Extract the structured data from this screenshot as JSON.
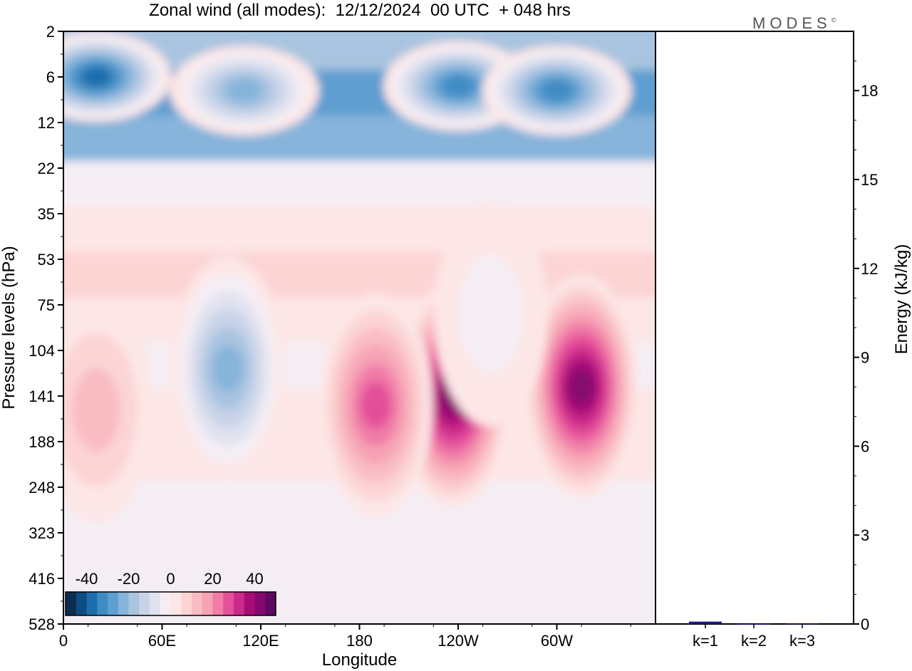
{
  "title": "Zonal wind (all modes):  12/12/2024  00 UTC  + 048 hrs",
  "logo": "MODES",
  "logo_mark": "©",
  "chart_data": [
    {
      "type": "heatmap",
      "title": "Zonal wind (all modes):  12/12/2024  00 UTC  + 048 hrs",
      "xlabel": "Longitude",
      "ylabel": "Pressure levels (hPa)",
      "x_ticks": [
        "0",
        "60E",
        "120E",
        "180",
        "120W",
        "60W"
      ],
      "y_ticks": [
        "2",
        "6",
        "12",
        "22",
        "35",
        "53",
        "75",
        "104",
        "141",
        "188",
        "248",
        "323",
        "416",
        "528"
      ],
      "colorbar": {
        "tick_labels": [
          "-40",
          "-20",
          "0",
          "20",
          "40"
        ],
        "levels": [
          -45,
          -40,
          -35,
          -30,
          -25,
          -20,
          -15,
          -10,
          -5,
          0,
          5,
          10,
          15,
          20,
          25,
          30,
          35,
          40,
          45
        ],
        "colors": [
          "#0b2d4e",
          "#0f4a80",
          "#1c6dab",
          "#3f8cc4",
          "#5f9ed0",
          "#86b4db",
          "#a9c4e0",
          "#c8d3e8",
          "#e0e2ef",
          "#f4eef4",
          "#fde6e6",
          "#fcd4d4",
          "#f9bcc3",
          "#f6a3b5",
          "#f07ca7",
          "#e4509a",
          "#cc2a8a",
          "#a80a78",
          "#850870",
          "#5e0860"
        ]
      },
      "features": [
        {
          "lon": 20,
          "level_index": 1.0,
          "value": -40
        },
        {
          "lon": 110,
          "level_index": 1.3,
          "value": -28
        },
        {
          "lon": 240,
          "level_index": 1.2,
          "value": -35
        },
        {
          "lon": 300,
          "level_index": 1.3,
          "value": -35
        },
        {
          "lon": 100,
          "level_index": 7.4,
          "value": -25
        },
        {
          "lon": 237,
          "level_index": 8.0,
          "value": 42
        },
        {
          "lon": 315,
          "level_index": 7.8,
          "value": 40
        },
        {
          "lon": 190,
          "level_index": 8.2,
          "value": 28
        },
        {
          "lon": 20,
          "level_index": 8.3,
          "value": 12
        },
        {
          "lon": 260,
          "level_index": 6.2,
          "value": -8
        }
      ]
    },
    {
      "type": "bar",
      "categories": [
        "k=1",
        "k=2",
        "k=3"
      ],
      "values": [
        0.08,
        0.01,
        0.02
      ],
      "ylabel": "Energy (kJ/kg)",
      "ylim": [
        0,
        20
      ],
      "y_ticks": [
        0,
        3,
        6,
        9,
        12,
        15,
        18
      ],
      "bar_color": "#1a1a8a"
    }
  ]
}
